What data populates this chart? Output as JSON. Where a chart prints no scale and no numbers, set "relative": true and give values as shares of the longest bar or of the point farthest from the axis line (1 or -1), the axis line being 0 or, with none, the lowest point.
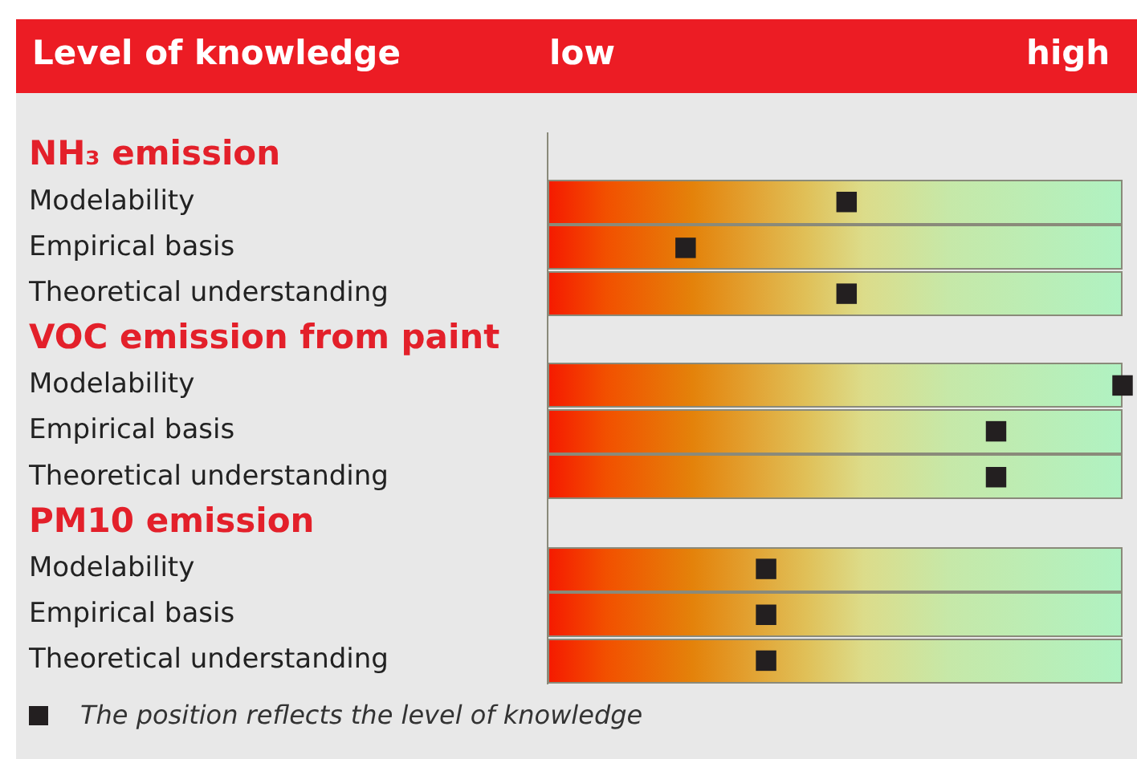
{
  "chart_data": {
    "type": "scatter",
    "title": "Level of knowledge",
    "categories": [
      "NH₃ emission",
      "Modelability",
      "Empirical basis",
      "Theoretical understanding",
      "VOC emission from paint",
      "Modelability",
      "Empirical basis",
      "Theoretical understanding",
      "PM10 emission",
      "Modelability",
      "Empirical basis",
      "Theoretical understanding"
    ],
    "values": [
      null,
      0.52,
      0.24,
      0.52,
      null,
      1,
      0.78,
      0.78,
      null,
      0.38,
      0.38,
      0.38
    ],
    "color": "#231f20",
    "marker": "square",
    "orientation": "horizontal",
    "relative": true,
    "grid": false,
    "legend": false,
    "annotations": [
      "low",
      "high",
      "The position reflects the level of knowledge"
    ]
  }
}
